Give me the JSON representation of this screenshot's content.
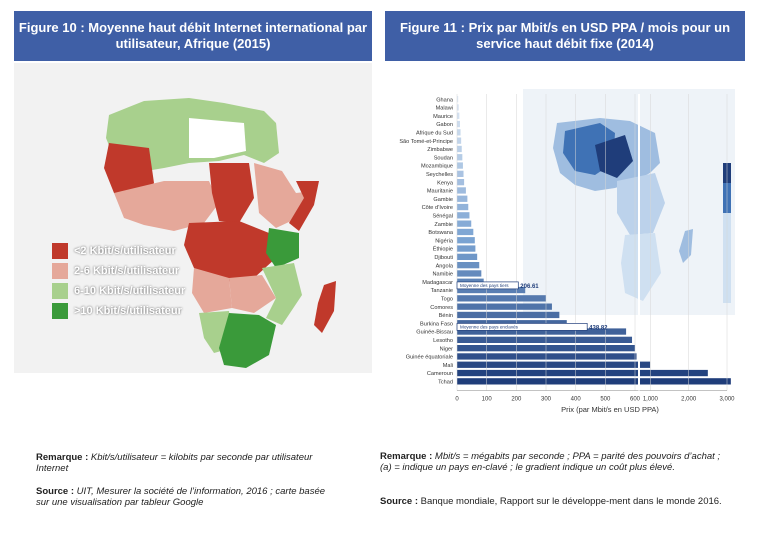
{
  "figure10": {
    "title": "Figure 10 : Moyenne haut débit Internet international par utilisateur, Afrique (2015)",
    "legend": [
      {
        "label": "<2 Kbit/s/utilisateur",
        "color": "#c0392b"
      },
      {
        "label": "2-6 Kbit/s/utilisateur",
        "color": "#e5a89a"
      },
      {
        "label": "6-10 Kbit/s/utilisateur",
        "color": "#a8d08d"
      },
      {
        "label": ">10 Kbit/s/utilisateur",
        "color": "#3a9a3a"
      }
    ],
    "note_label": "Remarque :",
    "note_text": "Kbit/s/utilisateur = kilobits par seconde par utilisateur Internet",
    "source_label": "Source :",
    "source_text": "UIT, Mesurer la société de l’information, 2016 ; carte basée sur une visualisation par tableur Google"
  },
  "figure11": {
    "title": "Figure 11 : Prix par Mbit/s en USD PPA / mois pour un service haut débit fixe (2014)",
    "note_label": "Remarque :",
    "note_text": "Mbit/s = mégabits par seconde ; PPA = parité des pouvoirs d’achat ; (a) = indique un pays en-clavé ; le gradient indique un coût plus élevé.",
    "source_label": "Source :",
    "source_text": "Banque mondiale, Rapport sur le développe-ment dans le monde 2016."
  },
  "chart_data": {
    "type": "bar",
    "orientation": "horizontal",
    "title": "Figure 11 : Prix par Mbit/s en USD PPA / mois pour un service haut débit fixe (2014)",
    "xlabel": "Prix (par Mbit/s en USD PPA)",
    "ylabel": "",
    "xlim": [
      0,
      3000
    ],
    "xticks": [
      "0",
      "100",
      "200",
      "300",
      "400",
      "500",
      "600",
      "1,000",
      "2,000",
      "3,000"
    ],
    "axis_break_after": 600,
    "categories": [
      "Ghana",
      "Malawi",
      "Maurice",
      "Gabon",
      "Afrique du Sud",
      "São Tomé-et-Principe",
      "Zimbabwe",
      "Soudan",
      "Mozambique",
      "Seychelles",
      "Kenya",
      "Mauritanie",
      "Gambie",
      "Côte d’Ivoire",
      "Sénégal",
      "Zambie",
      "Botswana",
      "Nigéria",
      "Éthiopie",
      "Djibouti",
      "Angola",
      "Namibie",
      "Madagascar",
      "Tanzanie",
      "Togo",
      "Comores",
      "Bénin",
      "Burkina Faso",
      "Guinée-Bissau",
      "Lesotho",
      "Niger",
      "Guinée équatoriale",
      "Mali",
      "Cameroun",
      "Tchad"
    ],
    "landlocked": [
      "Malawi",
      "Zimbabwe",
      "Zambie",
      "Botswana",
      "Éthiopie",
      "Burkina Faso",
      "Lesotho",
      "Niger",
      "Mali",
      "Tchad"
    ],
    "values": [
      4,
      6,
      8,
      10,
      12,
      14,
      16,
      18,
      20,
      22,
      24,
      30,
      35,
      38,
      42,
      48,
      55,
      60,
      62,
      68,
      75,
      82,
      90,
      230,
      300,
      320,
      345,
      370,
      570,
      590,
      600,
      640,
      1000,
      2500,
      3100
    ],
    "reference_lines": [
      {
        "label": "Moyenne des pays tiers",
        "value": 206.61,
        "value_label": "206.61"
      },
      {
        "label": "Moyenne des pays enclavés",
        "value": 438.82,
        "value_label": "438.82"
      }
    ],
    "colors": {
      "low": "#dfe8f4",
      "mid": "#7aa3d2",
      "high": "#1f3d7a"
    },
    "grid": true,
    "legend": "none"
  }
}
